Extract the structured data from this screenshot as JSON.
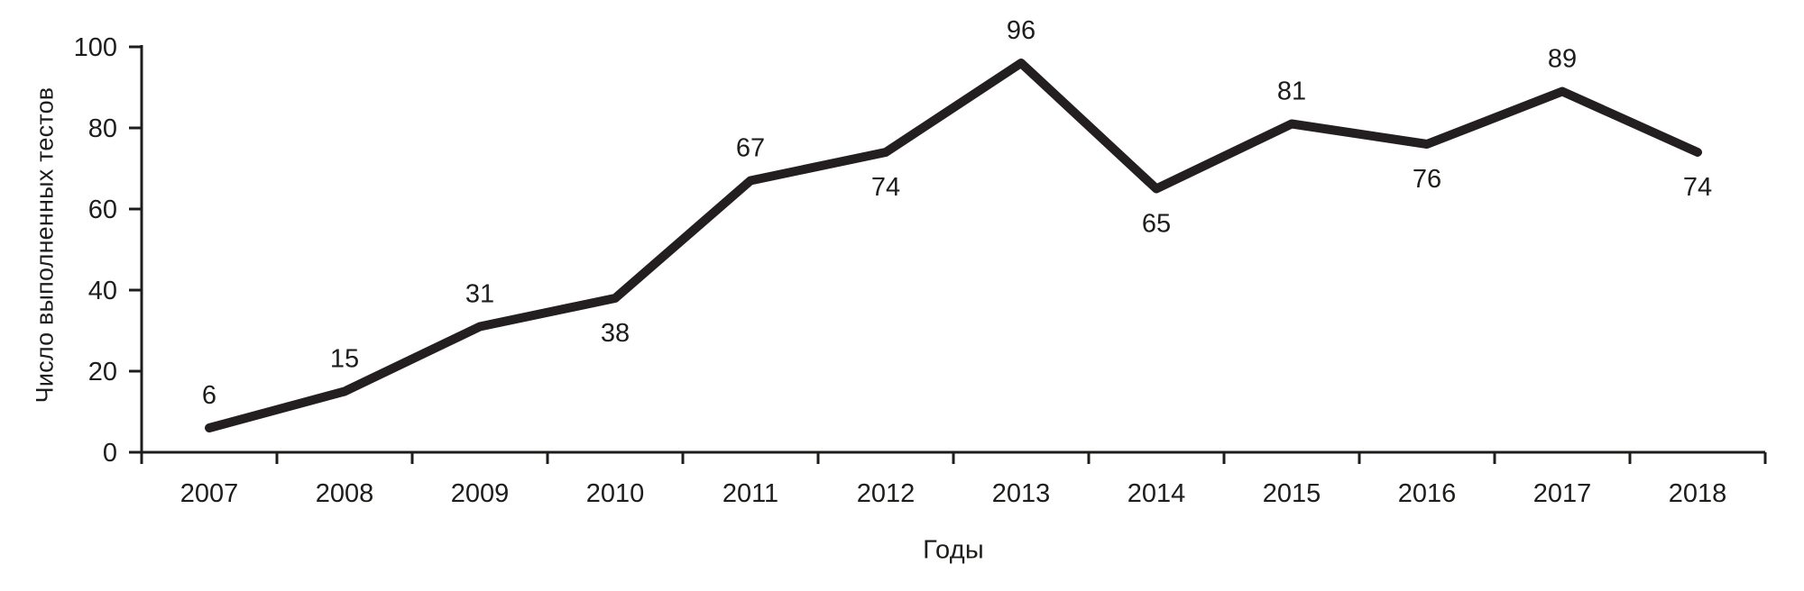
{
  "chart_data": {
    "type": "line",
    "title": "",
    "xlabel": "Годы",
    "ylabel": "Число выполненных тестов",
    "categories": [
      "2007",
      "2008",
      "2009",
      "2010",
      "2011",
      "2012",
      "2013",
      "2014",
      "2015",
      "2016",
      "2017",
      "2018"
    ],
    "series": [
      {
        "name": "Число выполненных тестов",
        "values": [
          6,
          15,
          31,
          38,
          67,
          74,
          96,
          65,
          81,
          76,
          89,
          74
        ]
      }
    ],
    "data_labels": [
      "6",
      "15",
      "31",
      "38",
      "67",
      "74",
      "96",
      "65",
      "81",
      "76",
      "89",
      "74"
    ],
    "label_sides": [
      "above",
      "above",
      "above",
      "below",
      "above",
      "below",
      "above",
      "below",
      "above",
      "below",
      "above",
      "below"
    ],
    "yticks": [
      "0",
      "20",
      "40",
      "60",
      "80",
      "100"
    ],
    "ylim": [
      0,
      100
    ],
    "grid": false,
    "legend": "none",
    "colors": {
      "line": "#231f20",
      "axis": "#1d1d1b",
      "text": "#1d1d1b",
      "background": "#ffffff"
    }
  }
}
